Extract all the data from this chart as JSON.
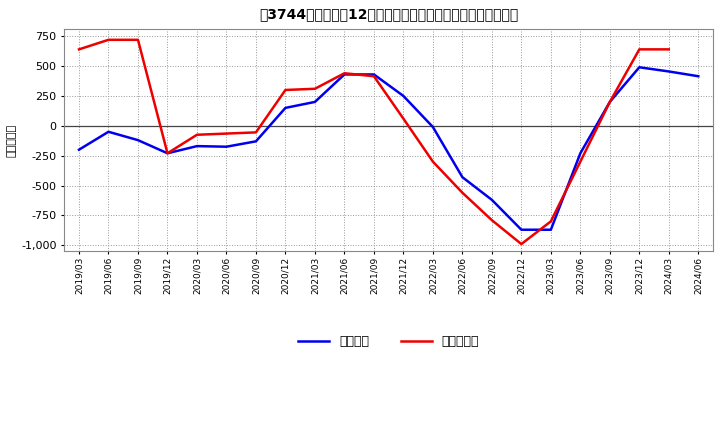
{
  "title_str": "[3744]  利益の12か月移動合計の対前年同期増減額の推移",
  "ylabel": "（百万円）",
  "background_color": "#ffffff",
  "grid_color": "#999999",
  "ylim": [
    -1050,
    810
  ],
  "yticks": [
    -1000,
    -750,
    -500,
    -250,
    0,
    250,
    500,
    750
  ],
  "x_labels": [
    "2019/03",
    "2019/06",
    "2019/09",
    "2019/12",
    "2020/03",
    "2020/06",
    "2020/09",
    "2020/12",
    "2021/03",
    "2021/06",
    "2021/09",
    "2021/12",
    "2022/03",
    "2022/06",
    "2022/09",
    "2022/12",
    "2023/03",
    "2023/06",
    "2023/09",
    "2023/12",
    "2024/03",
    "2024/06"
  ],
  "keijo_rieki": [
    -200,
    -50,
    -120,
    -230,
    -170,
    -175,
    -130,
    150,
    200,
    430,
    430,
    250,
    -10,
    -430,
    -620,
    -870,
    -870,
    -230,
    200,
    490,
    455,
    415
  ],
  "junrieki": [
    640,
    720,
    720,
    -230,
    -75,
    -65,
    -55,
    300,
    310,
    440,
    415,
    60,
    -300,
    -560,
    -790,
    -990,
    -800,
    -300,
    200,
    640,
    640,
    null
  ],
  "keijo_color": "#0000ee",
  "junrieki_color": "#ee0000",
  "legend_label_keijo": "経常利益",
  "legend_label_jun": "当期純利益",
  "line_width": 1.8
}
